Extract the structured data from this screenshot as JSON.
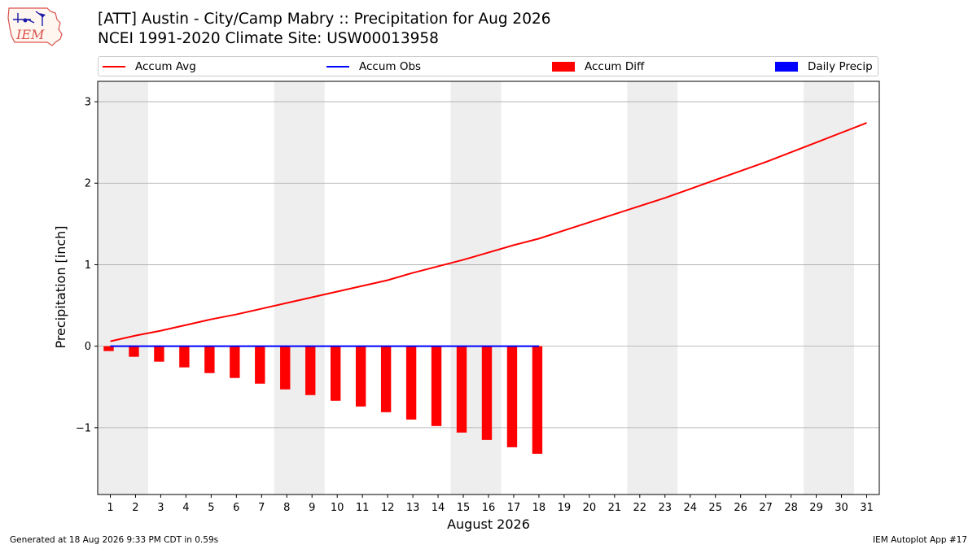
{
  "header": {
    "title_line1": "[ATT] Austin - City/Camp Mabry :: Precipitation for Aug 2026",
    "title_line2": "NCEI 1991-2020 Climate Site: USW00013958",
    "logo_text": "IEM"
  },
  "legend": {
    "accum_avg": "Accum Avg",
    "accum_obs": "Accum Obs",
    "accum_diff": "Accum Diff",
    "daily_precip": "Daily Precip"
  },
  "footer": {
    "generated": "Generated at 18 Aug 2026 9:33 PM CDT in 0.59s",
    "app": "IEM Autoplot App #17"
  },
  "colors": {
    "accum_avg": "#ff0000",
    "accum_obs": "#0000ff",
    "accum_diff": "#ff0000",
    "daily_precip": "#0000ff",
    "weekend_shade": "#eeeeee",
    "grid": "#aaaaaa"
  },
  "chart_data": {
    "type": "bar",
    "xlabel": "August 2026",
    "ylabel": "Precipitation [inch]",
    "xlim": [
      0.5,
      31.5
    ],
    "ylim": [
      -1.82,
      3.25
    ],
    "yticks": [
      {
        "value": 3,
        "label": "3"
      },
      {
        "value": 2,
        "label": "2"
      },
      {
        "value": 1,
        "label": "1"
      },
      {
        "value": 0,
        "label": "0"
      },
      {
        "value": -1,
        "label": "−1"
      }
    ],
    "x": [
      1,
      2,
      3,
      4,
      5,
      6,
      7,
      8,
      9,
      10,
      11,
      12,
      13,
      14,
      15,
      16,
      17,
      18,
      19,
      20,
      21,
      22,
      23,
      24,
      25,
      26,
      27,
      28,
      29,
      30,
      31
    ],
    "xtick_labels": [
      "1",
      "2",
      "3",
      "4",
      "5",
      "6",
      "7",
      "8",
      "9",
      "10",
      "11",
      "12",
      "13",
      "14",
      "15",
      "16",
      "17",
      "18",
      "19",
      "20",
      "21",
      "22",
      "23",
      "24",
      "25",
      "26",
      "27",
      "28",
      "29",
      "30",
      "31"
    ],
    "weekends": [
      [
        1,
        2
      ],
      [
        8,
        9
      ],
      [
        15,
        16
      ],
      [
        22,
        23
      ],
      [
        29,
        30
      ]
    ],
    "grid": "horizontal",
    "series": [
      {
        "name": "Accum Avg",
        "kind": "line",
        "values": [
          0.06,
          0.13,
          0.19,
          0.26,
          0.33,
          0.39,
          0.46,
          0.53,
          0.6,
          0.67,
          0.74,
          0.81,
          0.9,
          0.98,
          1.06,
          1.15,
          1.24,
          1.32,
          1.42,
          1.52,
          1.62,
          1.72,
          1.82,
          1.93,
          2.04,
          2.15,
          2.26,
          2.38,
          2.5,
          2.62,
          2.74
        ]
      },
      {
        "name": "Accum Obs",
        "kind": "line",
        "x": [
          1,
          2,
          3,
          4,
          5,
          6,
          7,
          8,
          9,
          10,
          11,
          12,
          13,
          14,
          15,
          16,
          17,
          18
        ],
        "values": [
          0,
          0,
          0,
          0,
          0,
          0,
          0,
          0,
          0,
          0,
          0,
          0,
          0,
          0,
          0,
          0,
          0,
          0
        ]
      },
      {
        "name": "Accum Diff",
        "kind": "bar",
        "x": [
          1,
          2,
          3,
          4,
          5,
          6,
          7,
          8,
          9,
          10,
          11,
          12,
          13,
          14,
          15,
          16,
          17,
          18
        ],
        "values": [
          -0.06,
          -0.13,
          -0.19,
          -0.26,
          -0.33,
          -0.39,
          -0.46,
          -0.53,
          -0.6,
          -0.67,
          -0.74,
          -0.81,
          -0.9,
          -0.98,
          -1.06,
          -1.15,
          -1.24,
          -1.32
        ]
      },
      {
        "name": "Daily Precip",
        "kind": "bar",
        "x": [
          1,
          2,
          3,
          4,
          5,
          6,
          7,
          8,
          9,
          10,
          11,
          12,
          13,
          14,
          15,
          16,
          17,
          18
        ],
        "values": [
          0,
          0,
          0,
          0,
          0,
          0,
          0,
          0,
          0,
          0,
          0,
          0,
          0,
          0,
          0,
          0,
          0,
          0
        ]
      }
    ]
  }
}
